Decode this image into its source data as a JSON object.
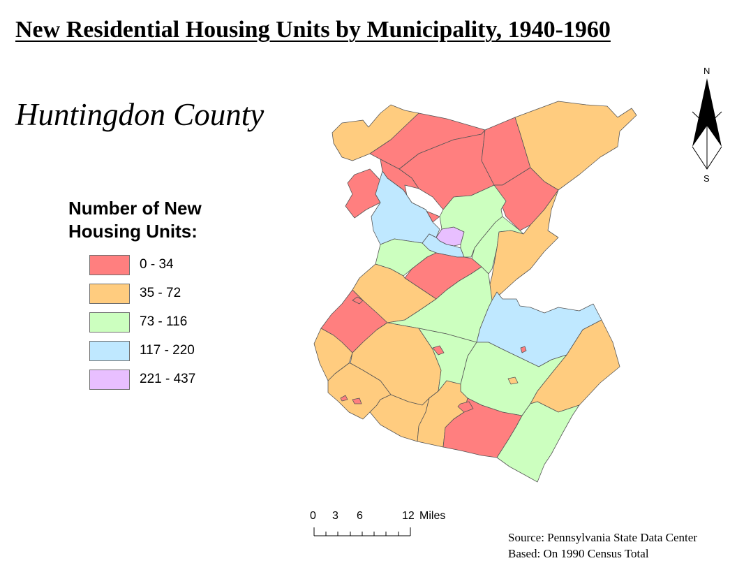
{
  "title": "New Residential Housing Units by Municipality, 1940-1960",
  "subtitle": "Huntingdon County",
  "legend": {
    "title": "Number of New Housing Units:",
    "items": [
      {
        "label": "0 - 34",
        "color": "#ff7f7f"
      },
      {
        "label": "35 - 72",
        "color": "#ffcc7f"
      },
      {
        "label": "73 - 116",
        "color": "#ccffbf"
      },
      {
        "label": "117 - 220",
        "color": "#bfe8ff"
      },
      {
        "label": "221 - 437",
        "color": "#e8bfff"
      }
    ]
  },
  "scalebar": {
    "ticks": [
      "0",
      "3",
      "6",
      "12"
    ],
    "unit": "Miles"
  },
  "north_arrow": {
    "north": "N",
    "south": "S"
  },
  "source": {
    "line1": "Source: Pennsylvania State Data Center",
    "line2": "Based: On 1990 Census Total"
  }
}
